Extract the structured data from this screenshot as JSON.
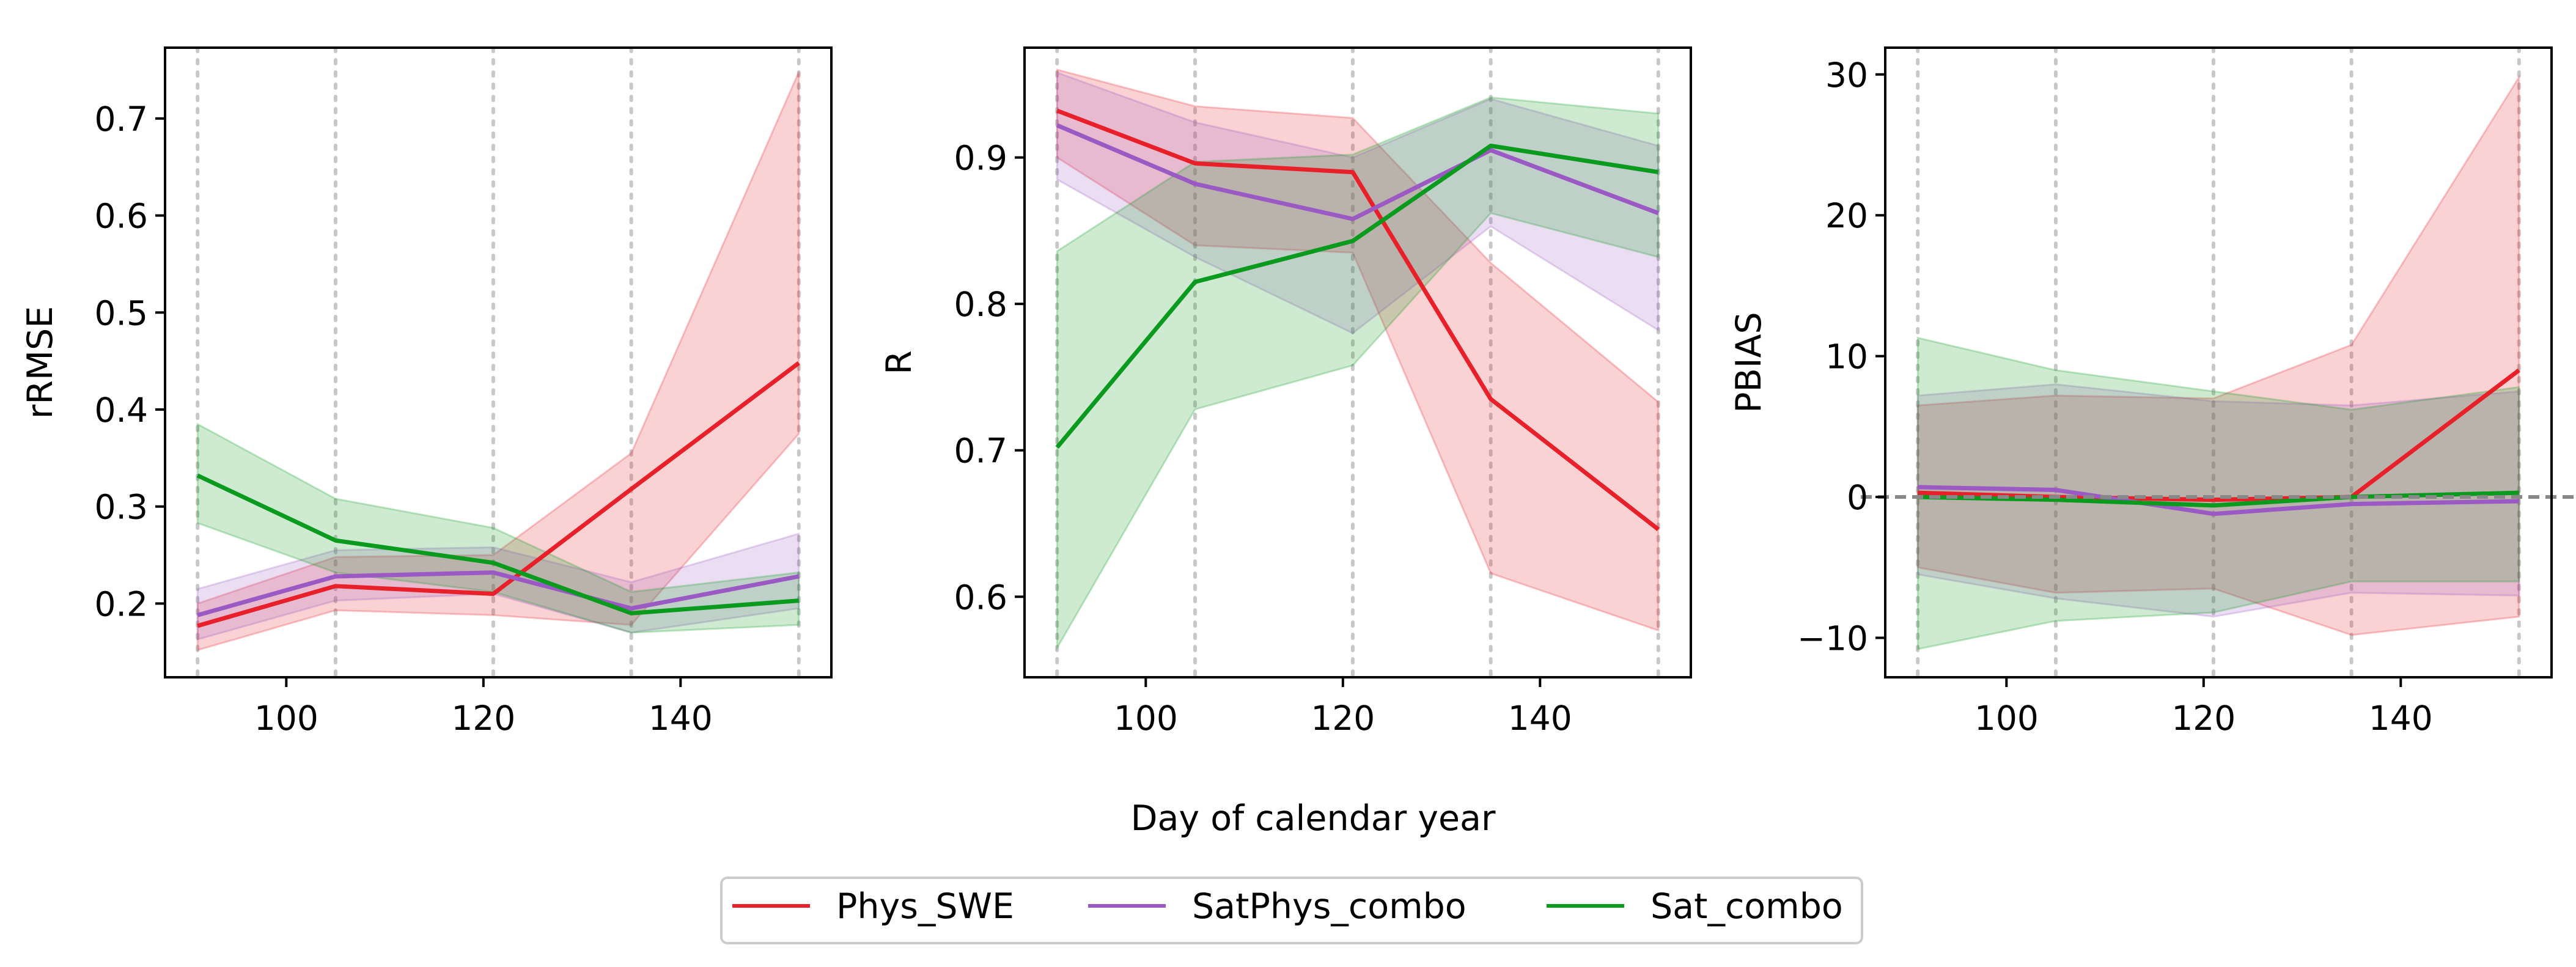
{
  "figure": {
    "xlabel": "Day of calendar year"
  },
  "legend": {
    "placement": "bottom-center",
    "entries": [
      {
        "name": "Phys_SWE",
        "color": "#e8202a"
      },
      {
        "name": "SatPhys_combo",
        "color": "#9b59c4"
      },
      {
        "name": "Sat_combo",
        "color": "#0a9a1e"
      }
    ]
  },
  "chart_data": [
    {
      "type": "line",
      "ylabel": "rRMSE",
      "x": [
        91,
        105,
        121,
        135,
        152
      ],
      "xlim": [
        87.7,
        155.3
      ],
      "ylim": [
        0.124,
        0.773
      ],
      "xticks": [
        100,
        120,
        140
      ],
      "xtick_labels": [
        "100",
        "120",
        "140"
      ],
      "yticks": [
        0.2,
        0.3,
        0.4,
        0.5,
        0.6,
        0.7
      ],
      "ytick_labels": [
        "0.2",
        "0.3",
        "0.4",
        "0.5",
        "0.6",
        "0.7"
      ],
      "vlines": [
        91,
        105,
        121,
        135,
        152
      ],
      "zero_line": false,
      "series": [
        {
          "name": "Phys_SWE",
          "values": [
            0.177,
            0.218,
            0.21,
            0.318,
            0.448
          ],
          "lower": [
            0.152,
            0.193,
            0.188,
            0.178,
            0.375
          ],
          "upper": [
            0.2,
            0.248,
            0.25,
            0.355,
            0.748
          ]
        },
        {
          "name": "SatPhys_combo",
          "values": [
            0.188,
            0.228,
            0.232,
            0.195,
            0.228
          ],
          "lower": [
            0.163,
            0.203,
            0.21,
            0.17,
            0.195
          ],
          "upper": [
            0.215,
            0.255,
            0.258,
            0.222,
            0.272
          ]
        },
        {
          "name": "Sat_combo",
          "values": [
            0.332,
            0.265,
            0.242,
            0.19,
            0.203
          ],
          "lower": [
            0.283,
            0.232,
            0.212,
            0.17,
            0.178
          ],
          "upper": [
            0.385,
            0.308,
            0.278,
            0.212,
            0.232
          ]
        }
      ]
    },
    {
      "type": "line",
      "ylabel": "R",
      "x": [
        91,
        105,
        121,
        135,
        152
      ],
      "xlim": [
        87.7,
        155.3
      ],
      "ylim": [
        0.545,
        0.975
      ],
      "xticks": [
        100,
        120,
        140
      ],
      "xtick_labels": [
        "100",
        "120",
        "140"
      ],
      "yticks": [
        0.6,
        0.7,
        0.8,
        0.9
      ],
      "ytick_labels": [
        "0.6",
        "0.7",
        "0.8",
        "0.9"
      ],
      "vlines": [
        91,
        105,
        121,
        135,
        152
      ],
      "zero_line": false,
      "series": [
        {
          "name": "Phys_SWE",
          "values": [
            0.932,
            0.896,
            0.89,
            0.735,
            0.646
          ],
          "lower": [
            0.9,
            0.84,
            0.835,
            0.616,
            0.577
          ],
          "upper": [
            0.96,
            0.935,
            0.927,
            0.828,
            0.733
          ]
        },
        {
          "name": "SatPhys_combo",
          "values": [
            0.922,
            0.882,
            0.858,
            0.905,
            0.862
          ],
          "lower": [
            0.885,
            0.832,
            0.78,
            0.853,
            0.782
          ],
          "upper": [
            0.958,
            0.924,
            0.9,
            0.94,
            0.908
          ]
        },
        {
          "name": "Sat_combo",
          "values": [
            0.702,
            0.815,
            0.843,
            0.908,
            0.89
          ],
          "lower": [
            0.565,
            0.728,
            0.758,
            0.862,
            0.832
          ],
          "upper": [
            0.836,
            0.897,
            0.902,
            0.941,
            0.93
          ]
        }
      ]
    },
    {
      "type": "line",
      "ylabel": "PBIAS",
      "x": [
        91,
        105,
        121,
        135,
        152
      ],
      "xlim": [
        87.7,
        155.3
      ],
      "ylim": [
        -12.8,
        31.9
      ],
      "xticks": [
        100,
        120,
        140
      ],
      "xtick_labels": [
        "100",
        "120",
        "140"
      ],
      "yticks": [
        -10,
        0,
        10,
        20,
        30
      ],
      "ytick_labels": [
        "−10",
        "0",
        "10",
        "20",
        "30"
      ],
      "vlines": [
        91,
        105,
        121,
        135,
        152
      ],
      "zero_line": true,
      "series": [
        {
          "name": "Phys_SWE",
          "values": [
            0.3,
            0.0,
            -0.2,
            0.0,
            9.0
          ],
          "lower": [
            -5.0,
            -6.8,
            -6.5,
            -9.8,
            -8.5
          ],
          "upper": [
            6.5,
            7.2,
            7.0,
            10.8,
            29.8
          ]
        },
        {
          "name": "SatPhys_combo",
          "values": [
            0.7,
            0.5,
            -1.2,
            -0.5,
            -0.3
          ],
          "lower": [
            -5.5,
            -7.2,
            -8.5,
            -6.8,
            -7.0
          ],
          "upper": [
            7.2,
            8.0,
            6.8,
            6.5,
            7.5
          ]
        },
        {
          "name": "Sat_combo",
          "values": [
            0.0,
            -0.2,
            -0.6,
            0.0,
            0.3
          ],
          "lower": [
            -10.8,
            -8.8,
            -8.2,
            -6.0,
            -6.0
          ],
          "upper": [
            11.3,
            9.0,
            7.5,
            6.2,
            7.8
          ]
        }
      ]
    }
  ]
}
